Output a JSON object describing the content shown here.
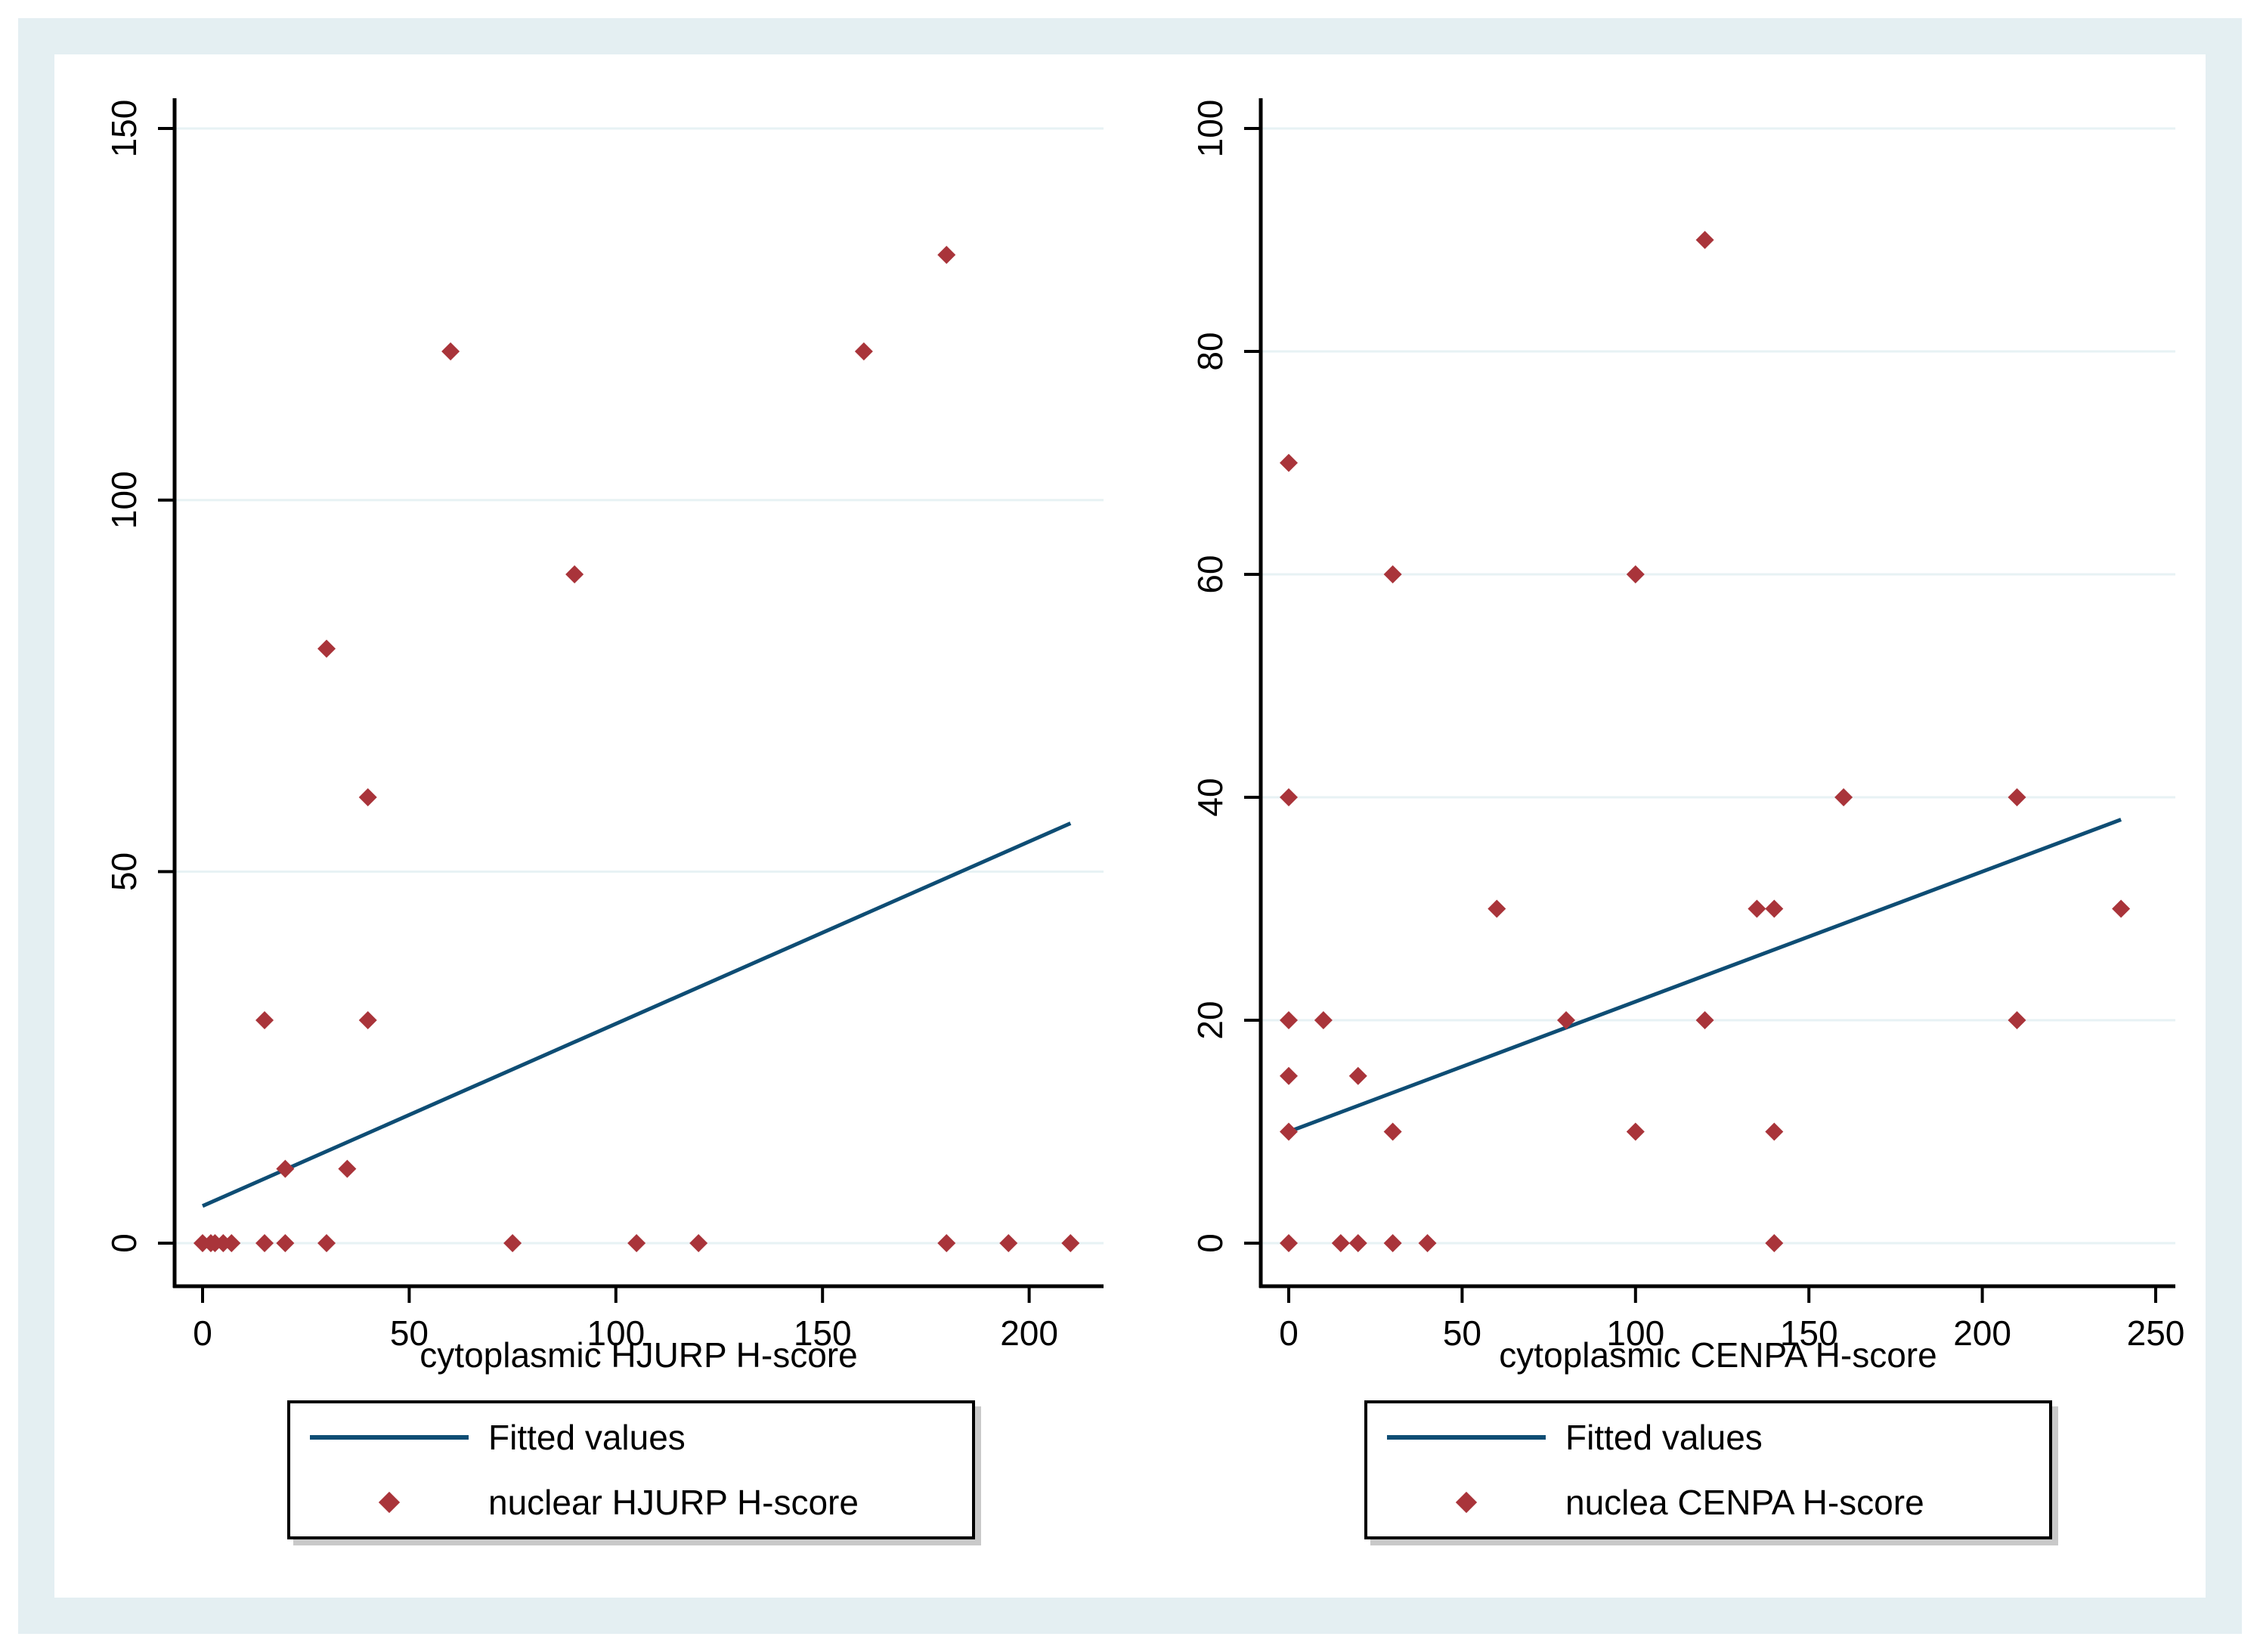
{
  "colors": {
    "page_bg": "#ffffff",
    "frame_bg": "#e4eff2",
    "plot_bg": "#ffffff",
    "gridline": "#e7f2f4",
    "axis": "#000000",
    "text": "#000000",
    "marker": "#a9343a",
    "fit_line": "#0e4d74"
  },
  "chart_data": [
    {
      "type": "scatter",
      "panel": "left",
      "title": "",
      "xlabel": "cytoplasmic HJURP H-score",
      "ylabel": "",
      "xlim": [
        -8,
        220
      ],
      "ylim": [
        -8,
        156
      ],
      "x_ticks": [
        0,
        50,
        100,
        150,
        200
      ],
      "y_ticks": [
        0,
        50,
        100,
        150
      ],
      "grid": "horizontal-only",
      "legend_position": "bottom",
      "series": [
        {
          "name": "Fitted values",
          "type": "line",
          "points": [
            [
              0,
              5
            ],
            [
              210,
              56.5
            ]
          ]
        },
        {
          "name": "nuclear HJURP H-score",
          "type": "scatter",
          "points": [
            [
              0,
              0
            ],
            [
              2,
              0
            ],
            [
              3,
              0
            ],
            [
              5,
              0
            ],
            [
              7,
              0
            ],
            [
              15,
              0
            ],
            [
              20,
              0
            ],
            [
              30,
              0
            ],
            [
              75,
              0
            ],
            [
              105,
              0
            ],
            [
              120,
              0
            ],
            [
              180,
              0
            ],
            [
              195,
              0
            ],
            [
              210,
              0
            ],
            [
              20,
              10
            ],
            [
              35,
              10
            ],
            [
              15,
              30
            ],
            [
              40,
              30
            ],
            [
              40,
              60
            ],
            [
              30,
              80
            ],
            [
              90,
              90
            ],
            [
              60,
              120
            ],
            [
              160,
              120
            ],
            [
              180,
              133
            ]
          ]
        }
      ]
    },
    {
      "type": "scatter",
      "panel": "right",
      "title": "",
      "xlabel": "cytoplasmic CENPA H-score",
      "ylabel": "",
      "xlim": [
        -10,
        262
      ],
      "ylim": [
        -5,
        104
      ],
      "x_ticks": [
        0,
        50,
        100,
        150,
        200,
        250
      ],
      "y_ticks": [
        0,
        20,
        40,
        60,
        80,
        100
      ],
      "grid": "horizontal-only",
      "legend_position": "bottom",
      "series": [
        {
          "name": "Fitted values",
          "type": "line",
          "points": [
            [
              0,
              10
            ],
            [
              240,
              38
            ]
          ]
        },
        {
          "name": "nuclea CENPA H-score",
          "type": "scatter",
          "points": [
            [
              0,
              0
            ],
            [
              15,
              0
            ],
            [
              20,
              0
            ],
            [
              30,
              0
            ],
            [
              40,
              0
            ],
            [
              140,
              0
            ],
            [
              0,
              10
            ],
            [
              30,
              10
            ],
            [
              100,
              10
            ],
            [
              140,
              10
            ],
            [
              0,
              15
            ],
            [
              20,
              15
            ],
            [
              0,
              20
            ],
            [
              10,
              20
            ],
            [
              80,
              20
            ],
            [
              120,
              20
            ],
            [
              210,
              20
            ],
            [
              60,
              30
            ],
            [
              135,
              30
            ],
            [
              140,
              30
            ],
            [
              240,
              30
            ],
            [
              0,
              40
            ],
            [
              160,
              40
            ],
            [
              210,
              40
            ],
            [
              30,
              60
            ],
            [
              100,
              60
            ],
            [
              0,
              70
            ],
            [
              120,
              90
            ]
          ]
        }
      ]
    }
  ]
}
